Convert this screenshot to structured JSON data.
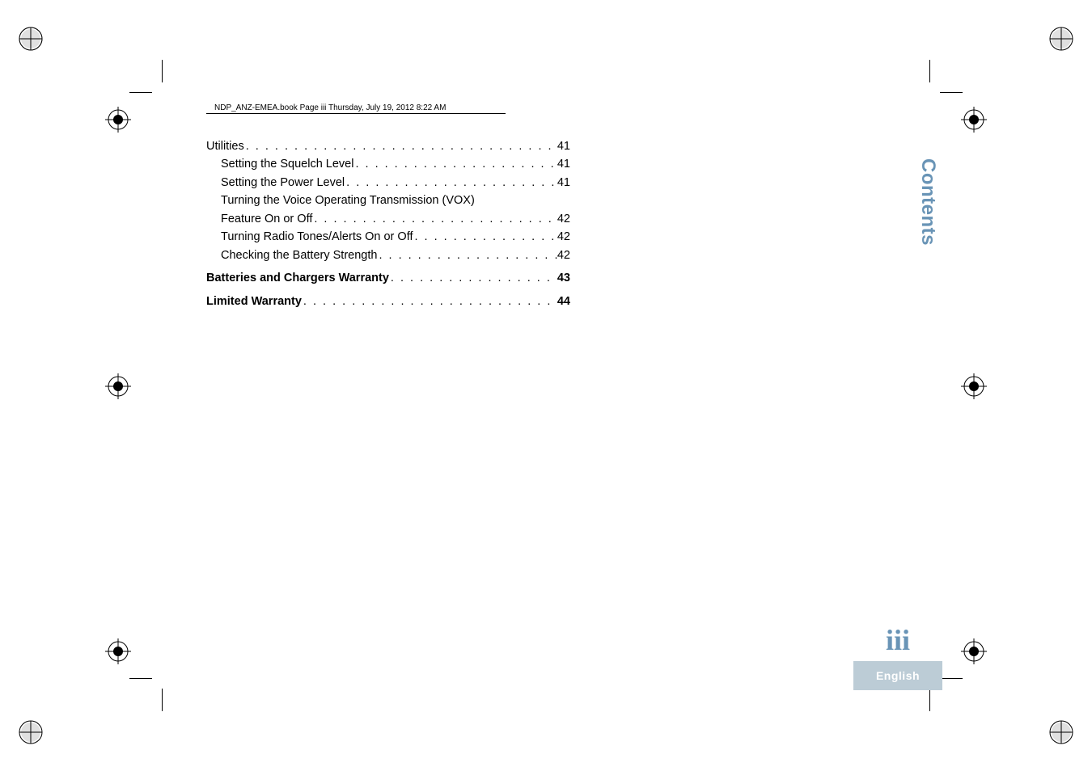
{
  "header": {
    "text": "NDP_ANZ-EMEA.book  Page iii  Thursday, July 19, 2012  8:22 AM"
  },
  "toc": {
    "items": [
      {
        "label": "Utilities",
        "page": "41",
        "indent": 0,
        "bold": false
      },
      {
        "label": "Setting the Squelch Level",
        "page": "41",
        "indent": 1,
        "bold": false
      },
      {
        "label": "Setting the Power Level",
        "page": "41",
        "indent": 1,
        "bold": false
      },
      {
        "label": "Turning the Voice Operating Transmission (VOX)",
        "page": "",
        "indent": 1,
        "bold": false,
        "continuation": true
      },
      {
        "label": "Feature On or Off",
        "page": "42",
        "indent": 1,
        "bold": false
      },
      {
        "label": "Turning Radio Tones/Alerts On or Off",
        "page": "42",
        "indent": 1,
        "bold": false
      },
      {
        "label": "Checking the Battery Strength",
        "page": "42",
        "indent": 1,
        "bold": false
      },
      {
        "label": "Batteries and Chargers Warranty",
        "page": "43",
        "indent": 0,
        "bold": true
      },
      {
        "label": "Limited Warranty",
        "page": "44",
        "indent": 0,
        "bold": true
      }
    ]
  },
  "sideTab": {
    "label": "Contents",
    "color": "#6994b6"
  },
  "footer": {
    "pageNumber": "iii",
    "pageNumberColor": "#6994b6",
    "langLabel": "English",
    "langBarBg": "#bcccd6",
    "langBarFg": "#ffffff"
  },
  "marks": {
    "ink": "#000000"
  }
}
